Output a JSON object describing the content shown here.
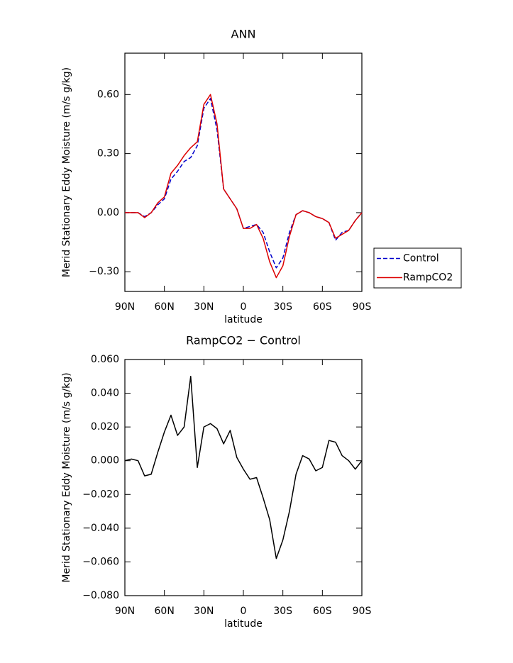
{
  "chart_data": [
    {
      "type": "line",
      "title": "ANN",
      "x_label": "latitude",
      "y_label": "Merid Stationary Eddy Moisture (m/s g/kg)",
      "x": [
        90,
        85,
        80,
        75,
        70,
        65,
        60,
        55,
        50,
        45,
        40,
        35,
        30,
        25,
        20,
        15,
        10,
        5,
        0,
        -5,
        -10,
        -15,
        -20,
        -25,
        -30,
        -35,
        -40,
        -45,
        -50,
        -55,
        -60,
        -65,
        -70,
        -75,
        -80,
        -85,
        -90
      ],
      "series": [
        {
          "name": "Control",
          "color": "#0000cc",
          "linestyle": "dashed",
          "values": [
            0,
            0,
            0,
            -0.02,
            0,
            0.04,
            0.07,
            0.17,
            0.21,
            0.26,
            0.28,
            0.34,
            0.53,
            0.58,
            0.42,
            0.12,
            0.07,
            0.02,
            -0.08,
            -0.07,
            -0.06,
            -0.1,
            -0.2,
            -0.28,
            -0.23,
            -0.1,
            -0.01,
            0.01,
            0,
            -0.02,
            -0.03,
            -0.05,
            -0.14,
            -0.1,
            -0.09,
            -0.04,
            0
          ]
        },
        {
          "name": "RampCO2",
          "color": "#dd0000",
          "linestyle": "solid",
          "values": [
            0,
            0,
            0,
            -0.025,
            0,
            0.05,
            0.08,
            0.2,
            0.24,
            0.29,
            0.33,
            0.36,
            0.55,
            0.6,
            0.45,
            0.12,
            0.07,
            0.02,
            -0.08,
            -0.08,
            -0.06,
            -0.13,
            -0.25,
            -0.33,
            -0.27,
            -0.12,
            -0.01,
            0.01,
            0,
            -0.02,
            -0.03,
            -0.05,
            -0.13,
            -0.11,
            -0.09,
            -0.04,
            0
          ]
        }
      ],
      "xlim": [
        90,
        -90
      ],
      "xticks": [
        {
          "value": 90,
          "label": "90N"
        },
        {
          "value": 60,
          "label": "60N"
        },
        {
          "value": 30,
          "label": "30N"
        },
        0,
        {
          "value": -30,
          "label": "30S"
        },
        {
          "value": -60,
          "label": "60S"
        },
        {
          "value": -90,
          "label": "90S"
        }
      ],
      "ylim": [
        -0.4,
        0.81
      ],
      "yticks": [
        {
          "value": -0.3,
          "label": "−0.30"
        },
        {
          "value": 0,
          "label": "0.00"
        },
        {
          "value": 0.3,
          "label": "0.30"
        },
        {
          "value": 0.6,
          "label": "0.60"
        }
      ],
      "legend": "right"
    },
    {
      "type": "line",
      "title": "RampCO2 − Control",
      "x_label": "latitude",
      "y_label": "Merid Stationary Eddy Moisture (m/s g/kg)",
      "x": [
        90,
        85,
        80,
        75,
        70,
        65,
        60,
        55,
        50,
        45,
        40,
        35,
        30,
        25,
        20,
        15,
        10,
        5,
        0,
        -5,
        -10,
        -15,
        -20,
        -25,
        -30,
        -35,
        -40,
        -45,
        -50,
        -55,
        -60,
        -65,
        -70,
        -75,
        -80,
        -85,
        -90
      ],
      "series": [
        {
          "color": "#000000",
          "linestyle": "solid",
          "values": [
            0,
            0.001,
            0,
            -0.009,
            -0.008,
            0.005,
            0.017,
            0.027,
            0.015,
            0.02,
            0.05,
            -0.004,
            0.02,
            0.022,
            0.019,
            0.01,
            0.018,
            0.002,
            -0.005,
            -0.011,
            -0.01,
            -0.022,
            -0.035,
            -0.058,
            -0.047,
            -0.03,
            -0.008,
            0.003,
            0.001,
            -0.006,
            -0.004,
            0.012,
            0.011,
            0.003,
            0,
            -0.005,
            0
          ]
        }
      ],
      "xlim": [
        90,
        -90
      ],
      "xticks": [
        {
          "value": 90,
          "label": "90N"
        },
        {
          "value": 60,
          "label": "60N"
        },
        {
          "value": 30,
          "label": "30N"
        },
        0,
        {
          "value": -30,
          "label": "30S"
        },
        {
          "value": -60,
          "label": "60S"
        },
        {
          "value": -90,
          "label": "90S"
        }
      ],
      "ylim": [
        -0.08,
        0.06
      ],
      "yticks": [
        {
          "value": -0.08,
          "label": "−0.080"
        },
        {
          "value": -0.06,
          "label": "−0.060"
        },
        {
          "value": -0.04,
          "label": "−0.040"
        },
        {
          "value": -0.02,
          "label": "−0.020"
        },
        {
          "value": 0,
          "label": "0.000"
        },
        {
          "value": 0.02,
          "label": "0.020"
        },
        {
          "value": 0.04,
          "label": "0.040"
        },
        {
          "value": 0.06,
          "label": "0.060"
        }
      ]
    }
  ]
}
